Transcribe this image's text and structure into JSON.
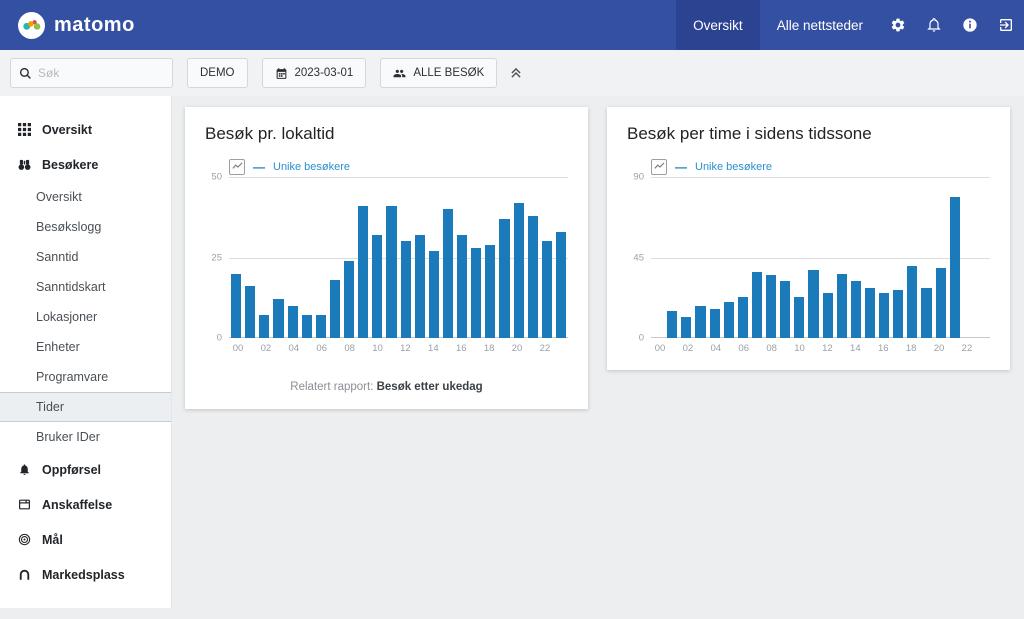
{
  "navbar": {
    "brand": "matomo",
    "items": [
      {
        "label": "Oversikt",
        "active": true
      },
      {
        "label": "Alle nettsteder",
        "active": false
      }
    ],
    "icons": [
      "gear-icon",
      "bell-icon",
      "info-icon",
      "logout-icon"
    ]
  },
  "toolbar": {
    "search_placeholder": "Søk",
    "site_button": "DEMO",
    "date_button": "2023-03-01",
    "date_icon": "calendar-icon",
    "segment_button": "ALLE BESØK",
    "segment_icon": "users-icon",
    "collapse_icon": "double-chevron-up-icon"
  },
  "sidebar": {
    "items": [
      {
        "label": "Oversikt",
        "type": "section",
        "icon": "grid-icon",
        "active": false
      },
      {
        "label": "Besøkere",
        "type": "section",
        "icon": "binoculars-icon",
        "active": false
      },
      {
        "label": "Oversikt",
        "type": "sub",
        "icon": "",
        "active": false
      },
      {
        "label": "Besøkslogg",
        "type": "sub",
        "icon": "",
        "active": false
      },
      {
        "label": "Sanntid",
        "type": "sub",
        "icon": "",
        "active": false
      },
      {
        "label": "Sanntidskart",
        "type": "sub",
        "icon": "",
        "active": false
      },
      {
        "label": "Lokasjoner",
        "type": "sub",
        "icon": "",
        "active": false
      },
      {
        "label": "Enheter",
        "type": "sub",
        "icon": "",
        "active": false
      },
      {
        "label": "Programvare",
        "type": "sub",
        "icon": "",
        "active": false
      },
      {
        "label": "Tider",
        "type": "sub",
        "icon": "",
        "active": true
      },
      {
        "label": "Bruker IDer",
        "type": "sub",
        "icon": "",
        "active": false
      },
      {
        "label": "Oppførsel",
        "type": "section",
        "icon": "bell-icon",
        "active": false
      },
      {
        "label": "Anskaffelse",
        "type": "section",
        "icon": "window-icon",
        "active": false
      },
      {
        "label": "Mål",
        "type": "section",
        "icon": "target-icon",
        "active": false
      },
      {
        "label": "Markedsplass",
        "type": "section",
        "icon": "marketplace-icon",
        "active": false
      }
    ]
  },
  "main": {
    "charts": [
      {
        "type": "bar",
        "title": "Besøk pr. lokaltid",
        "legend": "Unike besøkere",
        "series_color": "#1a7aba",
        "ymax": 50,
        "y_ticks": [
          "50",
          "25",
          "0"
        ],
        "x_labels": [
          "00",
          "",
          "02",
          "",
          "04",
          "",
          "06",
          "",
          "08",
          "",
          "10",
          "",
          "12",
          "",
          "14",
          "",
          "16",
          "",
          "18",
          "",
          "20",
          "",
          "22",
          ""
        ],
        "values": [
          20,
          16,
          7,
          12,
          10,
          7,
          7,
          18,
          24,
          41,
          32,
          41,
          30,
          32,
          27,
          40,
          32,
          28,
          29,
          37,
          42,
          38,
          30,
          33
        ],
        "related_prefix": "Relatert rapport: ",
        "related_link": "Besøk etter ukedag"
      },
      {
        "type": "bar",
        "title": "Besøk per time i sidens tidssone",
        "legend": "Unike besøkere",
        "series_color": "#1a7aba",
        "ymax": 90,
        "y_ticks": [
          "90",
          "45",
          "0"
        ],
        "x_labels": [
          "00",
          "",
          "02",
          "",
          "04",
          "",
          "06",
          "",
          "08",
          "",
          "10",
          "",
          "12",
          "",
          "14",
          "",
          "16",
          "",
          "18",
          "",
          "20",
          "",
          "22",
          ""
        ],
        "values": [
          null,
          15,
          12,
          18,
          16,
          20,
          23,
          37,
          35,
          32,
          23,
          38,
          25,
          36,
          32,
          28,
          25,
          27,
          40,
          28,
          39,
          79,
          null,
          null
        ]
      }
    ]
  }
}
